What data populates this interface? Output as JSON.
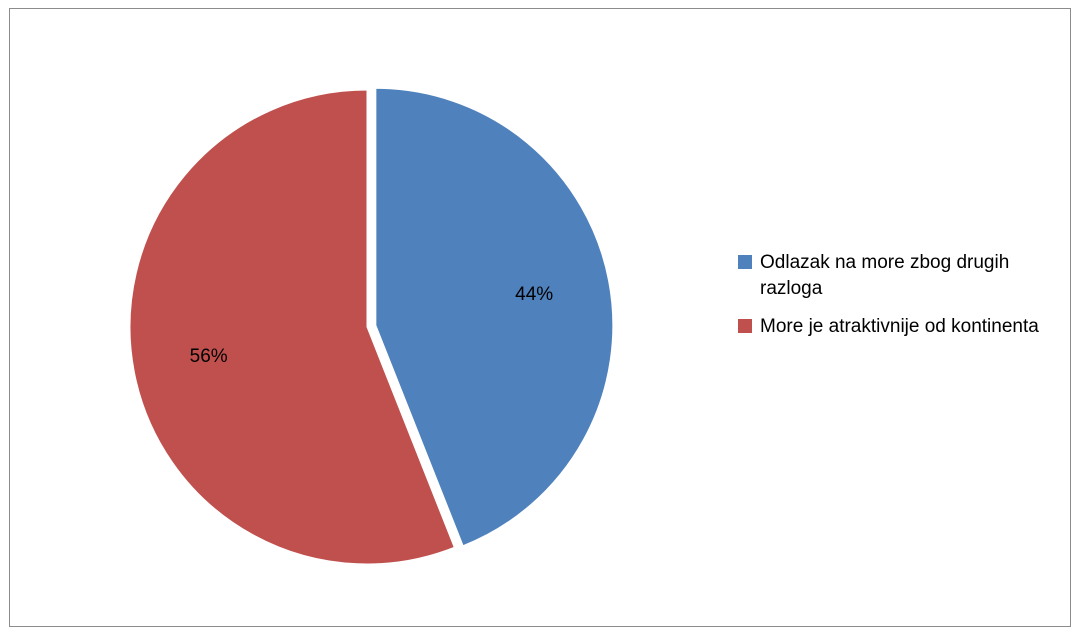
{
  "chart_data": {
    "type": "pie",
    "title": "",
    "categories": [
      "Odlazak na more zbog drugih razloga",
      "More je atraktivnije od kontinenta"
    ],
    "values": [
      44,
      56
    ],
    "labels": [
      "44%",
      "56%"
    ],
    "colors": [
      "#4F81BD",
      "#C0504D"
    ],
    "exploded_slice": 0,
    "legend_position": "right",
    "start_angle_deg": 0,
    "direction": "clockwise"
  }
}
